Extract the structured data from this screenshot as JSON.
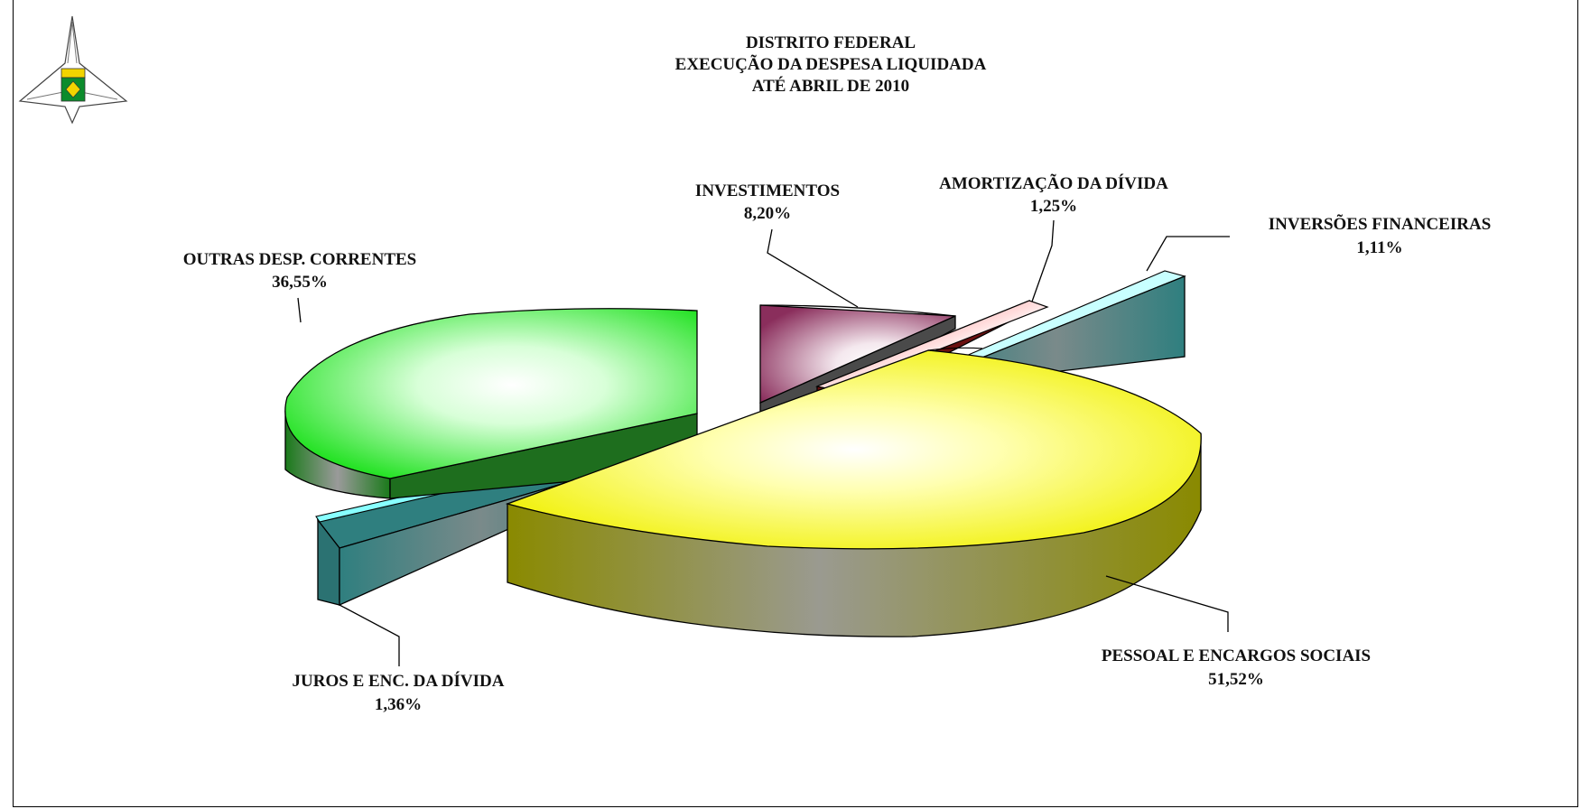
{
  "header": {
    "title_line1": "DISTRITO FEDERAL",
    "title_line2": "EXECUÇÃO DA DESPESA LIQUIDADA",
    "title_line3": "ATÉ  ABRIL DE 2010"
  },
  "logo": {
    "icon": "distrito-federal-coat-of-arms-icon"
  },
  "chart_data": {
    "type": "pie",
    "title": "DISTRITO FEDERAL EXECUÇÃO DA DESPESA LIQUIDADA ATÉ  ABRIL DE 2010",
    "unit": "%",
    "exploded": true,
    "three_d": true,
    "slices": [
      {
        "label": "PESSOAL E ENCARGOS SOCIAIS",
        "value": 51.52,
        "display": "51,52%",
        "color": "#f5f500"
      },
      {
        "label": "OUTRAS DESP. CORRENTES",
        "value": 36.55,
        "display": "36,55%",
        "color": "#22e822"
      },
      {
        "label": "INVESTIMENTOS",
        "value": 8.2,
        "display": "8,20%",
        "color": "#8a2e5c"
      },
      {
        "label": "AMORTIZAÇÃO DA DÍVIDA",
        "value": 1.25,
        "display": "1,25%",
        "color": "#d01818"
      },
      {
        "label": "INVERSÕES FINANCEIRAS",
        "value": 1.11,
        "display": "1,11%",
        "color": "#3e8c8c"
      },
      {
        "label": "JUROS E ENC. DA DÍVIDA",
        "value": 1.36,
        "display": "1,36%",
        "color": "#3e8c8c"
      }
    ],
    "legend": "none"
  }
}
